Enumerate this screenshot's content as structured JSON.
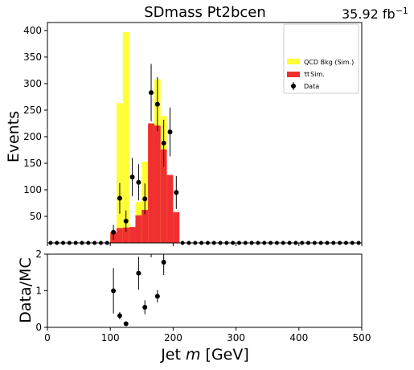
{
  "title": "SDmass  Pt2bcen",
  "lumi": {
    "value": "35.92",
    "unit": "fb",
    "exponent": "−1"
  },
  "chart_data": [
    {
      "type": "bar",
      "panel": "main",
      "ylabel": "Events",
      "xlim": [
        0,
        500
      ],
      "ylim": [
        0,
        415
      ],
      "y_ticks": [
        50,
        100,
        150,
        200,
        250,
        300,
        350,
        400
      ],
      "bin_edges": [
        100,
        110,
        120,
        130,
        140,
        150,
        160,
        170,
        180,
        190,
        200,
        210
      ],
      "series": [
        {
          "name": "QCD Bkg (Sim.)",
          "color": "#ffff33",
          "values": [
            20,
            263,
            397,
            30,
            77,
            153,
            219,
            308,
            239,
            128,
            58
          ]
        },
        {
          "name": "Sim.",
          "color": "#f03030",
          "values": [
            20,
            28,
            29,
            30,
            52,
            62,
            225,
            221,
            176,
            128,
            58
          ]
        }
      ],
      "data_series": {
        "name": "Data",
        "x": [
          105,
          115,
          125,
          135,
          145,
          155,
          165,
          175,
          185,
          195,
          205
        ],
        "y": [
          20,
          84,
          41,
          124,
          114,
          83,
          283,
          261,
          188,
          209,
          95
        ],
        "err": [
          14,
          29,
          20,
          36,
          34,
          29,
          54,
          51,
          44,
          46,
          31
        ]
      },
      "zero_markers": {
        "x_from": 5,
        "x_to": 495,
        "step": 10
      }
    },
    {
      "type": "scatter",
      "panel": "ratio",
      "ylabel": "Data/MC",
      "xlabel": "Jet",
      "xlabel_var": "m",
      "xlabel_unit": "[GeV]",
      "xlim": [
        0,
        500
      ],
      "ylim": [
        0,
        2
      ],
      "y_ticks": [
        0,
        1,
        2
      ],
      "x_ticks": [
        0,
        100,
        200,
        300,
        400,
        500
      ],
      "points": [
        {
          "x": 105,
          "y": 1.0,
          "err": 0.62
        },
        {
          "x": 115,
          "y": 0.32,
          "err": 0.1
        },
        {
          "x": 125,
          "y": 0.1,
          "err": 0.05
        },
        {
          "x": 145,
          "y": 1.48,
          "err": 0.45
        },
        {
          "x": 155,
          "y": 0.55,
          "err": 0.19
        },
        {
          "x": 175,
          "y": 0.85,
          "err": 0.17
        },
        {
          "x": 185,
          "y": 1.78,
          "err": 0.35
        }
      ],
      "ticks_above": [
        165
      ]
    }
  ]
}
